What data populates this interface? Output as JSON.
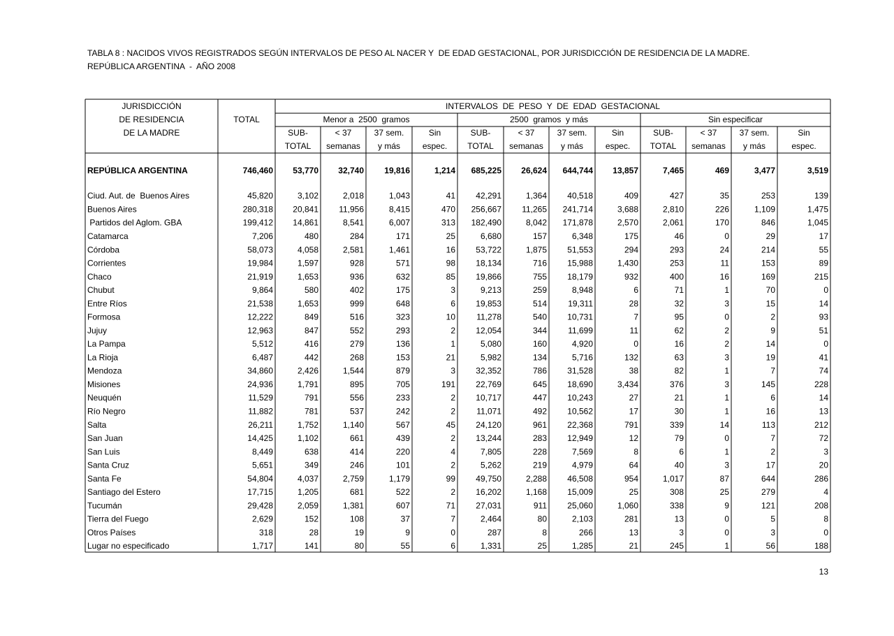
{
  "header": {
    "title": "TABLA 8 : NACIDOS VIVOS REGISTRADOS SEGÚN INTERVALOS DE PESO AL NACER Y  DE EDAD GESTACIONAL, POR JURISDICCIÓN DE RESIDENCIA DE LA MADRE.",
    "subtitle": "REPÚBLICA ARGENTINA  -  AÑO 2008"
  },
  "table": {
    "jurisdiction_header": [
      "JURISDICCIÓN",
      "DE RESIDENCIA",
      "DE LA MADRE"
    ],
    "total_header": "TOTAL",
    "intervals_header": "INTERVALOS  DE  PESO  Y  DE  EDAD  GESTACIONAL",
    "groups": [
      {
        "title": "Menor a  2500  gramos",
        "columns": [
          [
            "SUB-",
            "TOTAL"
          ],
          [
            "< 37",
            "semanas"
          ],
          [
            "37 sem.",
            "y más"
          ],
          [
            "Sin",
            "espec."
          ]
        ]
      },
      {
        "title": "2500  gramos  y más",
        "columns": [
          [
            "SUB-",
            "TOTAL"
          ],
          [
            "< 37",
            "semanas"
          ],
          [
            "37 sem.",
            "y más"
          ],
          [
            "Sin",
            "espec."
          ]
        ]
      },
      {
        "title": "Sin especificar",
        "columns": [
          [
            "SUB-",
            "TOTAL"
          ],
          [
            "< 37",
            "semanas"
          ],
          [
            "37 sem.",
            "y más"
          ],
          [
            "Sin",
            "espec."
          ]
        ]
      }
    ],
    "national_row": [
      "REPÚBLICA ARGENTINA",
      "746,460",
      "53,770",
      "32,740",
      "19,816",
      "1,214",
      "685,225",
      "26,624",
      "644,744",
      "13,857",
      "7,465",
      "469",
      "3,477",
      "3,519"
    ],
    "rows": [
      [
        "Ciud. Aut. de  Buenos Aires",
        "45,820",
        "3,102",
        "2,018",
        "1,043",
        "41",
        "42,291",
        "1,364",
        "40,518",
        "409",
        "427",
        "35",
        "253",
        "139"
      ],
      [
        "Buenos Aires",
        "280,318",
        "20,841",
        "11,956",
        "8,415",
        "470",
        "256,667",
        "11,265",
        "241,714",
        "3,688",
        "2,810",
        "226",
        "1,109",
        "1,475"
      ],
      [
        " Partidos del Aglom. GBA",
        "199,412",
        "14,861",
        "8,541",
        "6,007",
        "313",
        "182,490",
        "8,042",
        "171,878",
        "2,570",
        "2,061",
        "170",
        "846",
        "1,045"
      ],
      [
        "Catamarca",
        "7,206",
        "480",
        "284",
        "171",
        "25",
        "6,680",
        "157",
        "6,348",
        "175",
        "46",
        "0",
        "29",
        "17"
      ],
      [
        "Córdoba",
        "58,073",
        "4,058",
        "2,581",
        "1,461",
        "16",
        "53,722",
        "1,875",
        "51,553",
        "294",
        "293",
        "24",
        "214",
        "55"
      ],
      [
        "Corrientes",
        "19,984",
        "1,597",
        "928",
        "571",
        "98",
        "18,134",
        "716",
        "15,988",
        "1,430",
        "253",
        "11",
        "153",
        "89"
      ],
      [
        "Chaco",
        "21,919",
        "1,653",
        "936",
        "632",
        "85",
        "19,866",
        "755",
        "18,179",
        "932",
        "400",
        "16",
        "169",
        "215"
      ],
      [
        "Chubut",
        "9,864",
        "580",
        "402",
        "175",
        "3",
        "9,213",
        "259",
        "8,948",
        "6",
        "71",
        "1",
        "70",
        "0"
      ],
      [
        "Entre Ríos",
        "21,538",
        "1,653",
        "999",
        "648",
        "6",
        "19,853",
        "514",
        "19,311",
        "28",
        "32",
        "3",
        "15",
        "14"
      ],
      [
        "Formosa",
        "12,222",
        "849",
        "516",
        "323",
        "10",
        "11,278",
        "540",
        "10,731",
        "7",
        "95",
        "0",
        "2",
        "93"
      ],
      [
        "Jujuy",
        "12,963",
        "847",
        "552",
        "293",
        "2",
        "12,054",
        "344",
        "11,699",
        "11",
        "62",
        "2",
        "9",
        "51"
      ],
      [
        "La Pampa",
        "5,512",
        "416",
        "279",
        "136",
        "1",
        "5,080",
        "160",
        "4,920",
        "0",
        "16",
        "2",
        "14",
        "0"
      ],
      [
        "La Rioja",
        "6,487",
        "442",
        "268",
        "153",
        "21",
        "5,982",
        "134",
        "5,716",
        "132",
        "63",
        "3",
        "19",
        "41"
      ],
      [
        "Mendoza",
        "34,860",
        "2,426",
        "1,544",
        "879",
        "3",
        "32,352",
        "786",
        "31,528",
        "38",
        "82",
        "1",
        "7",
        "74"
      ],
      [
        "Misiones",
        "24,936",
        "1,791",
        "895",
        "705",
        "191",
        "22,769",
        "645",
        "18,690",
        "3,434",
        "376",
        "3",
        "145",
        "228"
      ],
      [
        "Neuquén",
        "11,529",
        "791",
        "556",
        "233",
        "2",
        "10,717",
        "447",
        "10,243",
        "27",
        "21",
        "1",
        "6",
        "14"
      ],
      [
        "Río Negro",
        "11,882",
        "781",
        "537",
        "242",
        "2",
        "11,071",
        "492",
        "10,562",
        "17",
        "30",
        "1",
        "16",
        "13"
      ],
      [
        "Salta",
        "26,211",
        "1,752",
        "1,140",
        "567",
        "45",
        "24,120",
        "961",
        "22,368",
        "791",
        "339",
        "14",
        "113",
        "212"
      ],
      [
        "San Juan",
        "14,425",
        "1,102",
        "661",
        "439",
        "2",
        "13,244",
        "283",
        "12,949",
        "12",
        "79",
        "0",
        "7",
        "72"
      ],
      [
        "San Luis",
        "8,449",
        "638",
        "414",
        "220",
        "4",
        "7,805",
        "228",
        "7,569",
        "8",
        "6",
        "1",
        "2",
        "3"
      ],
      [
        "Santa Cruz",
        "5,651",
        "349",
        "246",
        "101",
        "2",
        "5,262",
        "219",
        "4,979",
        "64",
        "40",
        "3",
        "17",
        "20"
      ],
      [
        "Santa Fe",
        "54,804",
        "4,037",
        "2,759",
        "1,179",
        "99",
        "49,750",
        "2,288",
        "46,508",
        "954",
        "1,017",
        "87",
        "644",
        "286"
      ],
      [
        "Santiago del Estero",
        "17,715",
        "1,205",
        "681",
        "522",
        "2",
        "16,202",
        "1,168",
        "15,009",
        "25",
        "308",
        "25",
        "279",
        "4"
      ],
      [
        "Tucumán",
        "29,428",
        "2,059",
        "1,381",
        "607",
        "71",
        "27,031",
        "911",
        "25,060",
        "1,060",
        "338",
        "9",
        "121",
        "208"
      ],
      [
        "Tierra del Fuego",
        "2,629",
        "152",
        "108",
        "37",
        "7",
        "2,464",
        "80",
        "2,103",
        "281",
        "13",
        "0",
        "5",
        "8"
      ],
      [
        "Otros Países",
        "318",
        "28",
        "19",
        "9",
        "0",
        "287",
        "8",
        "266",
        "13",
        "3",
        "0",
        "3",
        "0"
      ],
      [
        "Lugar no especificado",
        "1,717",
        "141",
        "80",
        "55",
        "6",
        "1,331",
        "25",
        "1,285",
        "21",
        "245",
        "1",
        "56",
        "188"
      ]
    ]
  },
  "footer": {
    "page_number": "13"
  }
}
